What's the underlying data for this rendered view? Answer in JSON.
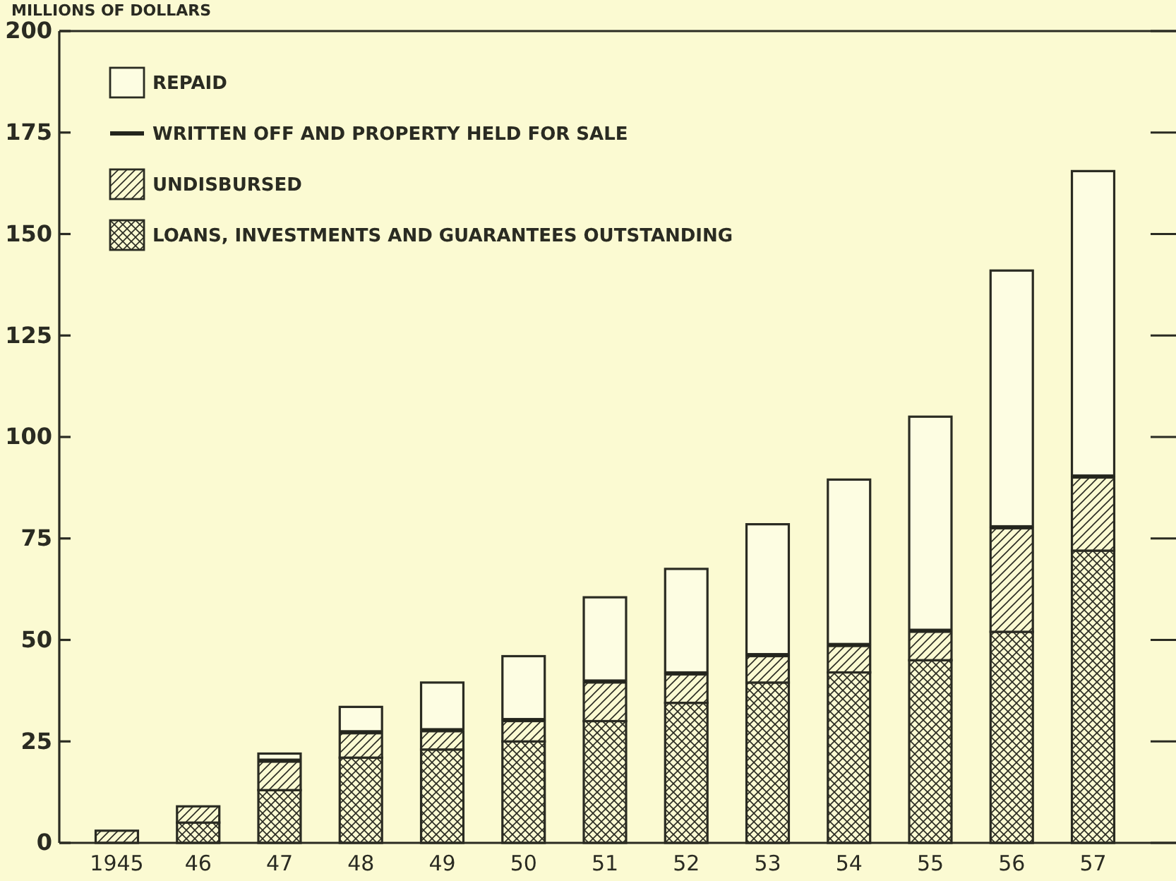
{
  "chart_data": {
    "type": "bar",
    "stacked": true,
    "ylabel": "MILLIONS OF DOLLARS",
    "categories": [
      "1945",
      "46",
      "47",
      "48",
      "49",
      "50",
      "51",
      "52",
      "53",
      "54",
      "55",
      "56",
      "57"
    ],
    "series": [
      {
        "name": "LOANS, INVESTMENTS AND GUARANTEES OUTSTANDING",
        "color": "#2a2b22",
        "values": [
          0,
          5,
          13,
          21,
          23,
          25,
          30,
          34.5,
          39.5,
          42,
          45,
          52,
          72
        ]
      },
      {
        "name": "UNDISBURSED",
        "color": "#2a2b22",
        "values": [
          3,
          4,
          7,
          6,
          4.5,
          5,
          9.5,
          7,
          6.5,
          6.5,
          7,
          25.5,
          18
        ]
      },
      {
        "name": "WRITTEN OFF AND PROPERTY HELD FOR SALE",
        "color": "#23251c",
        "values": [
          null,
          null,
          0.5,
          0.5,
          0.5,
          0.5,
          0.5,
          0.5,
          0.5,
          0.5,
          0.5,
          0.5,
          0.5
        ]
      },
      {
        "name": "REPAID",
        "color": "#fdfde2",
        "values": [
          null,
          null,
          1.5,
          6,
          11.5,
          15.5,
          20.5,
          25.5,
          32,
          40.5,
          52.5,
          63,
          75
        ]
      }
    ],
    "ylim": [
      0,
      200
    ],
    "yticks": [
      0,
      25,
      50,
      75,
      100,
      125,
      150,
      175,
      200
    ],
    "legend": "top left",
    "grid": false
  }
}
